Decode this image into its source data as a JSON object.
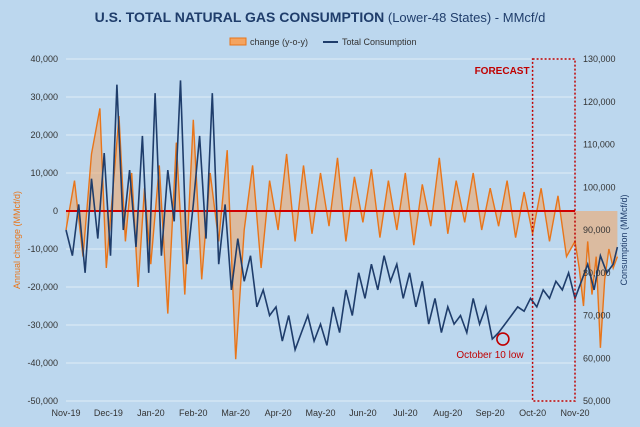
{
  "chart_data": {
    "type": "line",
    "title_bold": "U.S. TOTAL  NATURAL GAS CONSUMPTION",
    "title_rest": " (Lower-48 States) - MMcf/d",
    "ylabel_left": "Annual change (MMcf/d)",
    "ylabel_right": "Consumption (MMcf/d)",
    "y_left": {
      "min": -50000,
      "max": 40000,
      "ticks": [
        40000,
        30000,
        20000,
        10000,
        0,
        -10000,
        -20000,
        -30000,
        -40000,
        -50000
      ],
      "tick_labels": [
        "40,000",
        "30,000",
        "20,000",
        "10,000",
        "0",
        "-10,000",
        "-20,000",
        "-30,000",
        "-40,000",
        "-50,000"
      ]
    },
    "y_right": {
      "min": 50000,
      "max": 130000,
      "ticks": [
        130000,
        120000,
        110000,
        100000,
        90000,
        80000,
        70000,
        60000,
        50000
      ],
      "tick_labels": [
        "130,000",
        "120,000",
        "110,000",
        "100,000",
        "90,000",
        "80,000",
        "70,000",
        "60,000",
        "50,000"
      ]
    },
    "x_tick_labels": [
      "Nov-19",
      "Dec-19",
      "Jan-20",
      "Feb-20",
      "Mar-20",
      "Apr-20",
      "May-20",
      "Jun-20",
      "Jul-20",
      "Aug-20",
      "Sep-20",
      "Oct-20",
      "Nov-20"
    ],
    "legend": {
      "change_label": "change (y-o-y)",
      "total_label": "Total Consumption"
    },
    "forecast_label": "FORECAST",
    "forecast_start_month": 11.0,
    "annotation": {
      "label": "October 10 low",
      "month": 10.3,
      "value": 64500
    },
    "series": [
      {
        "name": "change (y-o-y)",
        "axis": "left",
        "x": [
          0,
          0.2,
          0.4,
          0.6,
          0.8,
          0.95,
          1.1,
          1.25,
          1.4,
          1.55,
          1.7,
          1.85,
          2.0,
          2.2,
          2.4,
          2.6,
          2.8,
          3.0,
          3.2,
          3.4,
          3.6,
          3.8,
          4.0,
          4.2,
          4.4,
          4.6,
          4.8,
          5.0,
          5.2,
          5.4,
          5.6,
          5.8,
          6.0,
          6.2,
          6.4,
          6.6,
          6.8,
          7.0,
          7.2,
          7.4,
          7.6,
          7.8,
          8.0,
          8.2,
          8.4,
          8.6,
          8.8,
          9.0,
          9.2,
          9.4,
          9.6,
          9.8,
          10.0,
          10.2,
          10.4,
          10.6,
          10.8,
          11.0,
          11.2,
          11.4,
          11.6,
          11.8,
          12.0,
          12.1,
          12.2,
          12.3,
          12.4,
          12.5,
          12.6,
          12.7,
          12.8,
          12.9,
          13.0
        ],
        "values": [
          -5000,
          8000,
          -12000,
          15000,
          27000,
          -15000,
          5000,
          25000,
          -8000,
          10000,
          -20000,
          6000,
          -14000,
          12000,
          -27000,
          18000,
          -22000,
          24000,
          -18000,
          10000,
          -8000,
          16000,
          -39000,
          -5000,
          12000,
          -15000,
          8000,
          -5000,
          15000,
          -8000,
          12000,
          -6000,
          10000,
          -4000,
          14000,
          -8000,
          9000,
          -3000,
          11000,
          -7000,
          8000,
          -5000,
          10000,
          -9000,
          7000,
          -4000,
          14000,
          -6000,
          8000,
          -3000,
          10000,
          -5000,
          6000,
          -4000,
          8000,
          -7000,
          5000,
          -6000,
          6000,
          -8000,
          4000,
          -12000,
          -8000,
          -15000,
          -25000,
          -8000,
          -22000,
          -12000,
          -36000,
          -18000,
          -10000,
          -15000,
          -12000
        ]
      },
      {
        "name": "Total Consumption",
        "axis": "right",
        "x": [
          0,
          0.15,
          0.3,
          0.45,
          0.6,
          0.75,
          0.9,
          1.05,
          1.2,
          1.35,
          1.5,
          1.65,
          1.8,
          1.95,
          2.1,
          2.25,
          2.4,
          2.55,
          2.7,
          2.85,
          3.0,
          3.15,
          3.3,
          3.45,
          3.6,
          3.75,
          3.9,
          4.05,
          4.2,
          4.35,
          4.5,
          4.65,
          4.8,
          4.95,
          5.1,
          5.25,
          5.4,
          5.55,
          5.7,
          5.85,
          6.0,
          6.15,
          6.3,
          6.45,
          6.6,
          6.75,
          6.9,
          7.05,
          7.2,
          7.35,
          7.5,
          7.65,
          7.8,
          7.95,
          8.1,
          8.25,
          8.4,
          8.55,
          8.7,
          8.85,
          9.0,
          9.15,
          9.3,
          9.45,
          9.6,
          9.75,
          9.9,
          10.05,
          10.2,
          10.35,
          10.5,
          10.65,
          10.8,
          10.95,
          11.1,
          11.25,
          11.4,
          11.55,
          11.7,
          11.85,
          12.0,
          12.15,
          12.3,
          12.45,
          12.6,
          12.75,
          12.9,
          13.0
        ],
        "values": [
          90000,
          84000,
          96000,
          80000,
          102000,
          88000,
          108000,
          84000,
          124000,
          90000,
          104000,
          86000,
          112000,
          80000,
          122000,
          84000,
          104000,
          92000,
          125000,
          82000,
          96000,
          112000,
          88000,
          122000,
          82000,
          96000,
          76000,
          88000,
          78000,
          84000,
          72000,
          76000,
          70000,
          72000,
          64000,
          70000,
          62000,
          66000,
          70000,
          64000,
          68000,
          63000,
          72000,
          66000,
          76000,
          70000,
          80000,
          74000,
          82000,
          76000,
          84000,
          78000,
          82000,
          74000,
          80000,
          72000,
          78000,
          68000,
          74000,
          66000,
          72000,
          68000,
          70000,
          66000,
          74000,
          68000,
          72000,
          64500,
          66000,
          68000,
          70000,
          72000,
          71000,
          74000,
          72000,
          76000,
          74000,
          78000,
          76000,
          80000,
          74000,
          78000,
          82000,
          76000,
          84000,
          80000,
          82000,
          86000
        ]
      }
    ]
  }
}
